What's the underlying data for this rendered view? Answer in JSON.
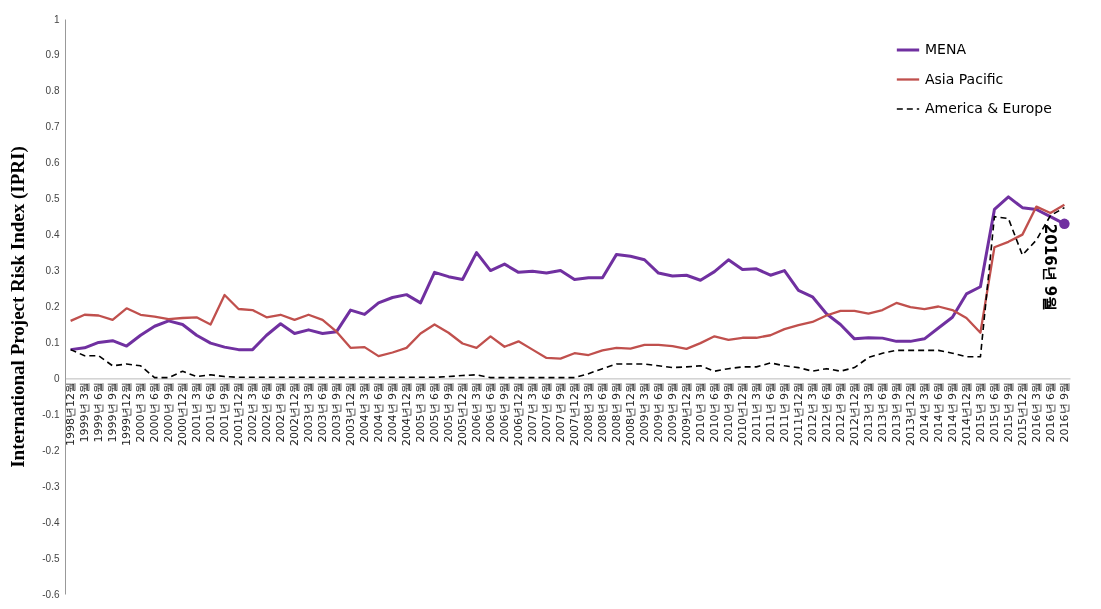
{
  "chart_data": {
    "type": "line",
    "ylabel": "International Project Risk Index (IPRI)",
    "categories": [
      "1998년12월",
      "1999년 3월",
      "1999년 6월",
      "1999년 9월",
      "1999년12월",
      "2000년 3월",
      "2000년 6월",
      "2000년 9월",
      "2000년12월",
      "2001년 3월",
      "2001년 6월",
      "2001년 9월",
      "2001년12월",
      "2002년 3월",
      "2002년 6월",
      "2002년 9월",
      "2002년12월",
      "2003년 3월",
      "2003년 6월",
      "2003년 9월",
      "2003년12월",
      "2004년 3월",
      "2004년 6월",
      "2004년 9월",
      "2004년12월",
      "2005년 3월",
      "2005년 6월",
      "2005년 9월",
      "2005년12월",
      "2006년 3월",
      "2006년 6월",
      "2006년 9월",
      "2006년12월",
      "2007년 3월",
      "2007년 6월",
      "2007년 9월",
      "2007년12월",
      "2008년 3월",
      "2008년 6월",
      "2008년 9월",
      "2008년12월",
      "2009년 3월",
      "2009년 6월",
      "2009년 9월",
      "2009년12월",
      "2010년 3월",
      "2010년 6월",
      "2010년 9월",
      "2010년12월",
      "2011년 3월",
      "2011년 6월",
      "2011년 9월",
      "2011년12월",
      "2012년 3월",
      "2012년 6월",
      "2012년 9월",
      "2012년12월",
      "2013년 3월",
      "2013년 6월",
      "2013년 9월",
      "2013년12월",
      "2014년 3월",
      "2014년 6월",
      "2014년 9월",
      "2014년12월",
      "2015년 3월",
      "2015년 6월",
      "2015년 9월",
      "2015년12월",
      "2016년 3월",
      "2016년 6월",
      "2016년 9월"
    ],
    "series": [
      {
        "name": "MENA",
        "color": "#7030a0",
        "line_style": "solid",
        "values": [
          0.08,
          0.085,
          0.1,
          0.105,
          0.09,
          0.12,
          0.145,
          0.16,
          0.15,
          0.12,
          0.098,
          0.087,
          0.08,
          0.08,
          0.12,
          0.152,
          0.125,
          0.135,
          0.125,
          0.13,
          0.19,
          0.178,
          0.21,
          0.225,
          0.233,
          0.21,
          0.295,
          0.283,
          0.275,
          0.35,
          0.3,
          0.318,
          0.295,
          0.298,
          0.293,
          0.3,
          0.275,
          0.28,
          0.28,
          0.345,
          0.34,
          0.33,
          0.293,
          0.285,
          0.287,
          0.273,
          0.297,
          0.33,
          0.303,
          0.305,
          0.287,
          0.3,
          0.245,
          0.227,
          0.18,
          0.15,
          0.11,
          0.113,
          0.112,
          0.103,
          0.103,
          0.11,
          0.14,
          0.17,
          0.235,
          0.255,
          0.47,
          0.505,
          0.475,
          0.47,
          0.45,
          0.43
        ]
      },
      {
        "name": "Asia Pacific",
        "color": "#c0504d",
        "line_style": "solid",
        "values": [
          0.16,
          0.177,
          0.175,
          0.163,
          0.195,
          0.177,
          0.172,
          0.165,
          0.168,
          0.17,
          0.15,
          0.232,
          0.193,
          0.19,
          0.17,
          0.177,
          0.163,
          0.177,
          0.163,
          0.13,
          0.085,
          0.087,
          0.062,
          0.072,
          0.085,
          0.125,
          0.15,
          0.127,
          0.097,
          0.085,
          0.117,
          0.088,
          0.103,
          0.08,
          0.057,
          0.055,
          0.07,
          0.065,
          0.078,
          0.085,
          0.083,
          0.093,
          0.093,
          0.09,
          0.082,
          0.098,
          0.117,
          0.107,
          0.113,
          0.113,
          0.12,
          0.137,
          0.148,
          0.157,
          0.175,
          0.188,
          0.188,
          0.18,
          0.19,
          0.21,
          0.198,
          0.193,
          0.2,
          0.19,
          0.168,
          0.127,
          0.365,
          0.38,
          0.4,
          0.478,
          0.46,
          0.483
        ]
      },
      {
        "name": "America & Europe",
        "color": "#000000",
        "line_style": "dashed",
        "values": [
          0.08,
          0.063,
          0.063,
          0.035,
          0.04,
          0.035,
          0.002,
          0.002,
          0.02,
          0.005,
          0.01,
          0.005,
          0.003,
          0.003,
          0.003,
          0.003,
          0.003,
          0.003,
          0.003,
          0.003,
          0.003,
          0.003,
          0.003,
          0.003,
          0.003,
          0.003,
          0.003,
          0.005,
          0.008,
          0.01,
          0.002,
          0.002,
          0.002,
          0.002,
          0.002,
          0.002,
          0.002,
          0.013,
          0.027,
          0.04,
          0.04,
          0.04,
          0.035,
          0.03,
          0.032,
          0.035,
          0.02,
          0.027,
          0.032,
          0.032,
          0.043,
          0.035,
          0.03,
          0.02,
          0.027,
          0.02,
          0.03,
          0.058,
          0.07,
          0.078,
          0.078,
          0.078,
          0.078,
          0.07,
          0.06,
          0.06,
          0.45,
          0.445,
          0.343,
          0.385,
          0.453,
          0.475
        ]
      }
    ],
    "ylim": [
      -0.6,
      1
    ],
    "yticks": [
      -0.6,
      -0.5,
      -0.4,
      -0.3,
      -0.2,
      -0.1,
      0,
      0.1,
      0.2,
      0.3,
      0.4,
      0.5,
      0.6,
      0.7,
      0.8,
      0.9,
      1
    ],
    "grid": false,
    "legend": "top right",
    "annotations": [
      {
        "text": "2016년 9월",
        "x": "2016년 9월",
        "y": 0.43
      }
    ]
  }
}
